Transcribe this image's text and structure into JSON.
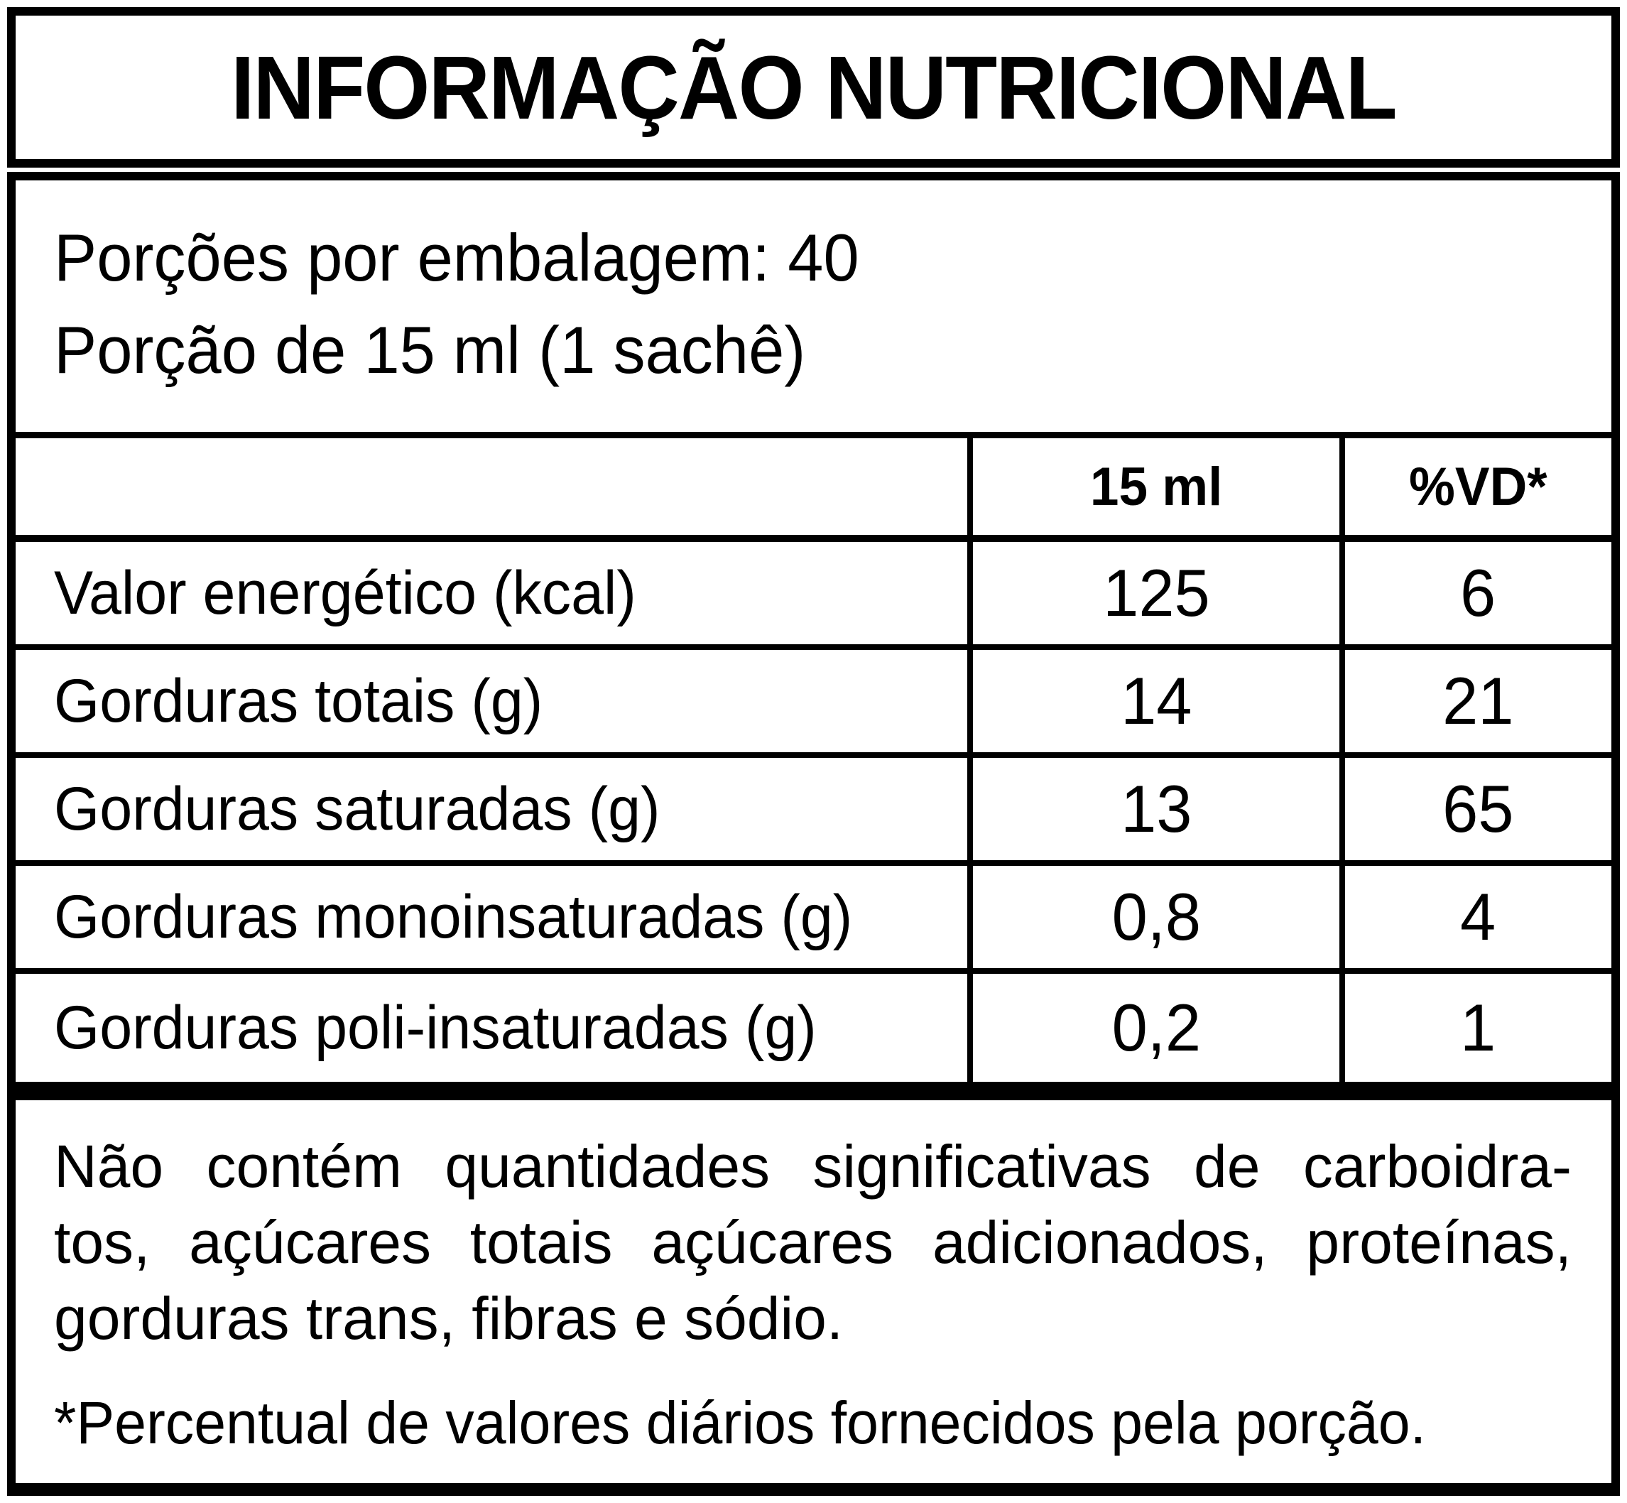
{
  "title": "INFORMAÇÃO NUTRICIONAL",
  "serving": {
    "servings_per_package": "Porções por embalagem: 40",
    "portion": "Porção de 15 ml (1 sachê)"
  },
  "table": {
    "columns": {
      "amount_header": "15 ml",
      "dv_header": "%VD*"
    },
    "rows": [
      {
        "label": "Valor energético (kcal)",
        "amount": "125",
        "dv": "6"
      },
      {
        "label": "Gorduras totais (g)",
        "amount": "14",
        "dv": "21"
      },
      {
        "label": "Gorduras saturadas (g)",
        "amount": "13",
        "dv": "65"
      },
      {
        "label": "Gorduras monoinsaturadas (g)",
        "amount": "0,8",
        "dv": "4"
      },
      {
        "label": "Gorduras poli-insaturadas (g)",
        "amount": "0,2",
        "dv": "1"
      }
    ]
  },
  "footnotes": {
    "no_significant_lines": [
      "Não contém quantidades significativas de carboidra-",
      "tos, açúcares totais açúcares adicionados, proteínas,",
      "gorduras trans, fibras e sódio."
    ],
    "daily_value_note": "*Percentual de valores diários fornecidos pela porção."
  },
  "colors": {
    "ink": "#000000",
    "background": "#ffffff"
  }
}
